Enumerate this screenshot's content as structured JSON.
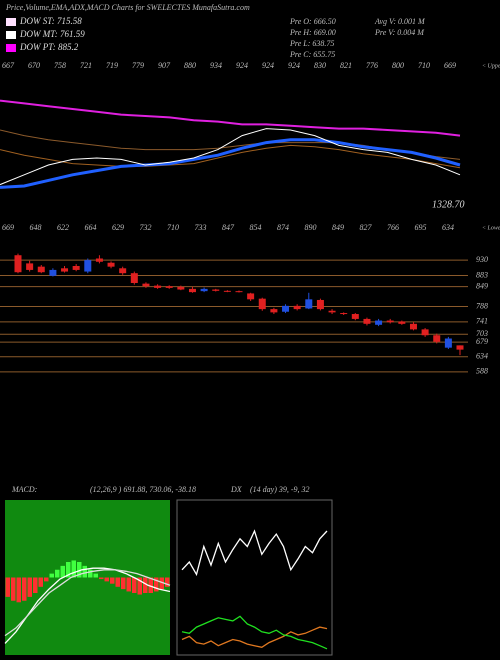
{
  "header": {
    "title": "Price,Volume,EMA,ADX,MACD Charts for SWELECTES MunafaSutra.com",
    "legend": [
      {
        "label": "DOW ST: 715.58",
        "color": "#ffe0ff"
      },
      {
        "label": "DOW MT: 761.59",
        "color": "#ffffff"
      },
      {
        "label": "DOW PT: 885.2",
        "color": "#ff00ff"
      }
    ],
    "info": [
      "Pre O: 666.50",
      "Pre H: 669.00",
      "Pre L: 638.75",
      "Pre C: 655.75",
      "Avg V: 0.001 M",
      "Pre V: 0.004 M"
    ]
  },
  "chart_data": [
    {
      "type": "line",
      "upper_labels": [
        "667",
        "670",
        "758",
        "721",
        "719",
        "779",
        "907",
        "880",
        "934",
        "924",
        "924",
        "924",
        "830",
        "821",
        "776",
        "800",
        "710",
        "669"
      ],
      "upper_tag": "< Upper",
      "lower_labels": [
        "669",
        "648",
        "622",
        "664",
        "629",
        "732",
        "710",
        "733",
        "847",
        "854",
        "874",
        "890",
        "849",
        "827",
        "766",
        "695",
        "634"
      ],
      "lower_tag": "< Lower",
      "last_label": "1328.70",
      "ylim": [
        0,
        100
      ],
      "series": [
        {
          "color": "#e020e0",
          "width": 2,
          "values": [
            71,
            69,
            67,
            65,
            63,
            61,
            60,
            59,
            57,
            56,
            54,
            54,
            53,
            52,
            51,
            51,
            50,
            49,
            48,
            46
          ]
        },
        {
          "color": "#8b5a2b",
          "width": 1,
          "values": [
            50,
            46,
            43,
            41,
            39,
            37,
            36,
            36,
            36,
            37,
            39,
            41,
            41,
            41,
            41,
            39,
            36,
            34,
            31,
            29
          ]
        },
        {
          "color": "#a06020",
          "width": 1,
          "values": [
            36,
            32,
            29,
            26,
            25,
            24,
            24,
            25,
            26,
            30,
            34,
            37,
            39,
            38,
            36,
            33,
            31,
            29,
            26,
            23
          ]
        },
        {
          "color": "#2060ff",
          "width": 3,
          "values": [
            9,
            10,
            14,
            18,
            21,
            24,
            25,
            26,
            29,
            32,
            37,
            41,
            43,
            43,
            41,
            38,
            36,
            34,
            30,
            25
          ]
        },
        {
          "color": "#ffffff",
          "width": 1,
          "values": [
            11,
            18,
            25,
            29,
            30,
            29,
            25,
            27,
            30,
            36,
            46,
            51,
            50,
            46,
            39,
            36,
            34,
            29,
            25,
            18
          ]
        }
      ]
    },
    {
      "type": "candlestick",
      "up_color": "#2050e0",
      "down_color": "#e02020",
      "ylim": [
        563,
        961
      ],
      "grid": true,
      "yticks": [
        930,
        883,
        849,
        788,
        741,
        703,
        679,
        634,
        588
      ],
      "open": [
        945,
        920,
        910,
        882,
        905,
        912,
        895,
        935,
        922,
        905,
        890,
        858,
        852,
        850,
        848,
        842,
        835,
        840,
        836,
        835,
        828,
        812,
        780,
        772,
        790,
        782,
        808,
        775,
        768,
        765,
        750,
        732,
        745,
        742,
        735,
        718,
        700,
        662,
        669
      ],
      "high": [
        950,
        928,
        915,
        905,
        912,
        918,
        935,
        945,
        926,
        910,
        895,
        862,
        856,
        853,
        852,
        848,
        846,
        842,
        838,
        837,
        830,
        815,
        784,
        795,
        795,
        830,
        812,
        780,
        770,
        768,
        754,
        750,
        750,
        745,
        740,
        722,
        705,
        695,
        669
      ],
      "low": [
        890,
        895,
        890,
        880,
        892,
        896,
        890,
        920,
        905,
        885,
        855,
        845,
        842,
        842,
        838,
        830,
        832,
        834,
        832,
        831,
        805,
        775,
        765,
        768,
        776,
        780,
        776,
        765,
        762,
        746,
        730,
        728,
        736,
        732,
        715,
        695,
        675,
        658,
        639
      ],
      "close": [
        893,
        900,
        893,
        900,
        895,
        900,
        930,
        925,
        910,
        890,
        860,
        850,
        845,
        845,
        840,
        832,
        842,
        836,
        834,
        833,
        810,
        780,
        770,
        790,
        780,
        810,
        780,
        770,
        765,
        750,
        735,
        745,
        740,
        735,
        718,
        700,
        680,
        690,
        656
      ]
    },
    {
      "type": "macd",
      "title": "MACD:",
      "subtitle": "(12,26,9 ) 691.88, 730.06, -38.18",
      "background": "#108a10",
      "pos_color": "#40ff40",
      "neg_color": "#ff3030",
      "ylim": [
        -1,
        1
      ],
      "hist": [
        -0.25,
        -0.3,
        -0.32,
        -0.3,
        -0.25,
        -0.2,
        -0.12,
        -0.05,
        0.05,
        0.1,
        0.15,
        0.2,
        0.22,
        0.2,
        0.15,
        0.1,
        0.05,
        -0.02,
        -0.05,
        -0.08,
        -0.12,
        -0.15,
        -0.18,
        -0.2,
        -0.22,
        -0.2,
        -0.2,
        -0.18,
        -0.15,
        -0.12
      ],
      "series": [
        {
          "color": "#ffffff",
          "values": [
            -0.85,
            -0.7,
            -0.5,
            -0.3,
            -0.15,
            -0.02,
            0.05,
            0.1,
            0.12,
            0.12,
            0.1,
            0.05,
            -0.02,
            -0.1,
            -0.15,
            -0.18
          ]
        },
        {
          "color": "#dddddd",
          "values": [
            -0.75,
            -0.65,
            -0.5,
            -0.35,
            -0.2,
            -0.1,
            0,
            0.05,
            0.08,
            0.1,
            0.1,
            0.08,
            0.05,
            0,
            -0.05,
            -0.1
          ]
        }
      ]
    },
    {
      "type": "adx",
      "title": "DX",
      "subtitle": "(14 day) 39, -9, 32",
      "background": "#000000",
      "ylim": [
        0,
        100
      ],
      "series": [
        {
          "color": "#ffffff",
          "values": [
            55,
            60,
            52,
            70,
            58,
            72,
            60,
            68,
            75,
            70,
            80,
            65,
            72,
            78,
            70,
            55,
            62,
            70,
            66,
            75,
            80
          ]
        },
        {
          "color": "#e07820",
          "values": [
            10,
            12,
            8,
            7,
            9,
            6,
            8,
            10,
            9,
            7,
            6,
            5,
            8,
            10,
            12,
            15,
            13,
            14,
            16,
            18,
            17
          ]
        },
        {
          "color": "#20e020",
          "values": [
            15,
            14,
            18,
            20,
            22,
            24,
            23,
            22,
            25,
            20,
            18,
            15,
            14,
            16,
            13,
            12,
            10,
            9,
            8,
            6,
            4
          ]
        }
      ]
    }
  ]
}
